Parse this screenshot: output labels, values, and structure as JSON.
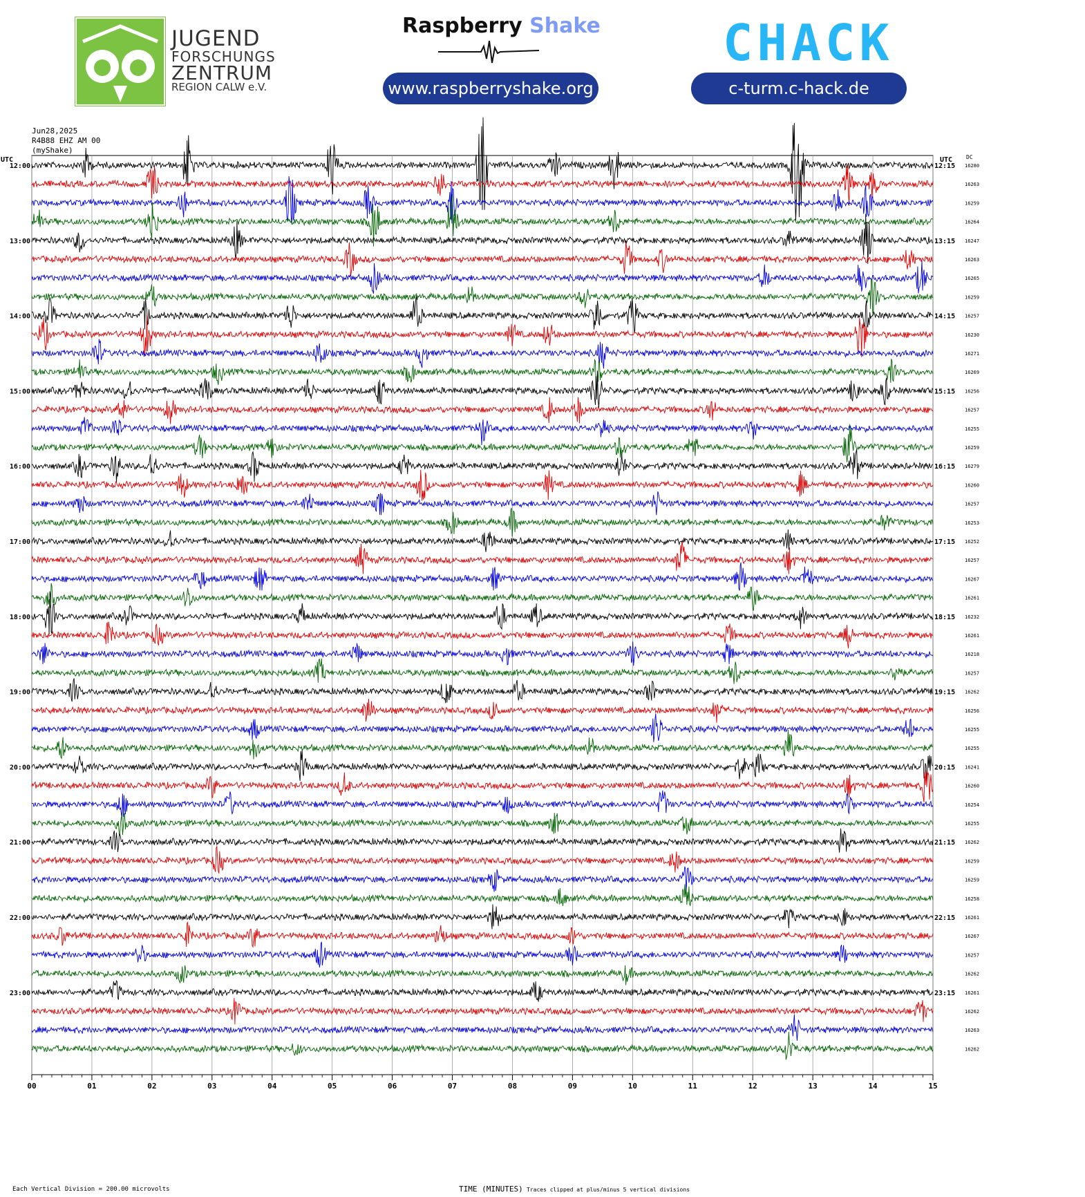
{
  "header": {
    "jfz": {
      "line1": "JUGEND",
      "line2": "FORSCHUNGS",
      "line3": "ZENTRUM",
      "line4": "REGION CALW e.V.",
      "green": "#7cc243"
    },
    "rs": {
      "brand1": "Raspberry",
      "brand2": "Shake",
      "url": "www.raspberryshake.org",
      "accent": "#7f9cf5"
    },
    "chack": {
      "logo": "CHACK",
      "url": "c-turm.c-hack.de",
      "green": "#6fcf3a",
      "cyan": "#29b6f6"
    },
    "pill_color": "#1f3a93"
  },
  "meta": {
    "date": "Jun28,2025",
    "station": "R4B88 EHZ AM 00",
    "source": "(myShake)",
    "utc_left": "UTC",
    "utc_right": "UTC",
    "dc": "DC"
  },
  "footer": {
    "scale_note": "Each Vertical Division =  200.00 microvolts",
    "xlabel": "TIME (MINUTES)",
    "clip_note": "Traces clipped at plus/minus 5 vertical divisions"
  },
  "chart_data": {
    "type": "line",
    "title": "",
    "xlabel": "TIME (MINUTES)",
    "x_ticks": [
      "00",
      "01",
      "02",
      "03",
      "04",
      "05",
      "06",
      "07",
      "08",
      "09",
      "10",
      "11",
      "12",
      "13",
      "14",
      "15"
    ],
    "xlim": [
      0,
      15
    ],
    "colors": [
      "#000000",
      "#e00000",
      "#0000e0",
      "#006400"
    ],
    "left_time_labels": [
      "12:00",
      "13:00",
      "14:00",
      "15:00",
      "16:00",
      "17:00",
      "18:00",
      "19:00",
      "20:00",
      "21:00",
      "22:00",
      "23:00"
    ],
    "right_time_labels": [
      "12:15",
      "13:15",
      "14:15",
      "15:15",
      "16:15",
      "17:15",
      "18:15",
      "19:15",
      "20:15",
      "21:15",
      "22:15",
      "23:15"
    ],
    "dc_values": [
      "16280",
      "16263",
      "16259",
      "16264",
      "16247",
      "16263",
      "16265",
      "16259",
      "16257",
      "16230",
      "16271",
      "16269",
      "16256",
      "16257",
      "16255",
      "16259",
      "16279",
      "16260",
      "16257",
      "16253",
      "16252",
      "16257",
      "16267",
      "16261",
      "16232",
      "16261",
      "16218",
      "16257",
      "16262",
      "16256",
      "16255",
      "16255",
      "16241",
      "16260",
      "16254",
      "16255",
      "16262",
      "16259",
      "16259",
      "16258",
      "16261",
      "16267",
      "16257",
      "16262",
      "16261",
      "16262",
      "16263",
      "16262"
    ],
    "events": [
      [
        [
          0.9,
          0.8
        ],
        [
          2.6,
          1.6
        ],
        [
          5.0,
          1.8
        ],
        [
          7.5,
          3.2
        ],
        [
          8.7,
          0.9
        ],
        [
          9.7,
          1.4
        ],
        [
          12.7,
          3.0
        ],
        [
          12.8,
          2.2
        ]
      ],
      [
        [
          2.0,
          1.2
        ],
        [
          6.8,
          0.8
        ],
        [
          13.6,
          1.2
        ],
        [
          14.0,
          0.7
        ]
      ],
      [
        [
          2.5,
          0.8
        ],
        [
          4.3,
          1.6
        ],
        [
          5.6,
          0.9
        ],
        [
          7.0,
          1.4
        ],
        [
          13.4,
          0.9
        ],
        [
          13.9,
          1.2
        ]
      ],
      [
        [
          0.1,
          0.7
        ],
        [
          2.0,
          1.2
        ],
        [
          5.7,
          1.4
        ],
        [
          7.0,
          1.6
        ],
        [
          9.7,
          0.7
        ]
      ],
      [
        [
          0.8,
          0.6
        ],
        [
          3.4,
          1.0
        ],
        [
          12.6,
          0.5
        ],
        [
          13.9,
          1.6
        ]
      ],
      [
        [
          5.3,
          0.9
        ],
        [
          9.9,
          1.0
        ],
        [
          10.5,
          0.6
        ],
        [
          14.6,
          0.6
        ]
      ],
      [
        [
          5.7,
          0.8
        ],
        [
          12.2,
          0.6
        ],
        [
          13.8,
          1.2
        ],
        [
          14.8,
          1.0
        ]
      ],
      [
        [
          2.0,
          0.6
        ],
        [
          7.3,
          0.6
        ],
        [
          9.2,
          0.6
        ],
        [
          14.0,
          1.0
        ]
      ],
      [
        [
          0.3,
          0.8
        ],
        [
          1.9,
          0.8
        ],
        [
          4.3,
          0.8
        ],
        [
          6.4,
          1.0
        ],
        [
          9.4,
          1.2
        ],
        [
          10.0,
          1.0
        ],
        [
          13.9,
          0.7
        ]
      ],
      [
        [
          0.2,
          0.9
        ],
        [
          1.9,
          1.3
        ],
        [
          8.0,
          0.6
        ],
        [
          8.6,
          0.7
        ],
        [
          13.8,
          1.5
        ]
      ],
      [
        [
          1.1,
          0.8
        ],
        [
          4.8,
          0.8
        ],
        [
          6.5,
          0.7
        ],
        [
          9.5,
          0.8
        ]
      ],
      [
        [
          0.8,
          0.6
        ],
        [
          3.1,
          0.6
        ],
        [
          6.3,
          0.6
        ],
        [
          9.4,
          0.9
        ],
        [
          14.3,
          0.6
        ]
      ],
      [
        [
          0.8,
          0.6
        ],
        [
          1.6,
          0.7
        ],
        [
          2.9,
          0.8
        ],
        [
          4.6,
          0.7
        ],
        [
          5.8,
          0.8
        ],
        [
          9.4,
          1.5
        ],
        [
          13.7,
          0.8
        ],
        [
          14.2,
          0.7
        ]
      ],
      [
        [
          1.5,
          0.6
        ],
        [
          2.3,
          0.7
        ],
        [
          8.6,
          0.7
        ],
        [
          9.1,
          0.7
        ],
        [
          11.3,
          0.6
        ]
      ],
      [
        [
          0.9,
          0.6
        ],
        [
          1.4,
          0.6
        ],
        [
          7.5,
          0.8
        ],
        [
          9.5,
          0.6
        ],
        [
          12.0,
          0.6
        ]
      ],
      [
        [
          2.8,
          0.7
        ],
        [
          4.0,
          0.6
        ],
        [
          9.8,
          0.6
        ],
        [
          11.0,
          0.7
        ],
        [
          13.6,
          1.2
        ]
      ],
      [
        [
          0.8,
          0.6
        ],
        [
          1.4,
          0.8
        ],
        [
          2.0,
          0.8
        ],
        [
          3.7,
          0.8
        ],
        [
          6.2,
          0.6
        ],
        [
          9.8,
          0.7
        ],
        [
          13.7,
          1.0
        ]
      ],
      [
        [
          2.5,
          0.8
        ],
        [
          3.5,
          0.8
        ],
        [
          6.5,
          1.0
        ],
        [
          8.6,
          0.7
        ],
        [
          12.8,
          0.6
        ]
      ],
      [
        [
          0.8,
          0.6
        ],
        [
          4.6,
          0.6
        ],
        [
          5.8,
          0.6
        ],
        [
          10.4,
          0.6
        ]
      ],
      [
        [
          7.0,
          0.7
        ],
        [
          8.0,
          0.7
        ],
        [
          14.2,
          0.5
        ]
      ],
      [
        [
          2.3,
          0.6
        ],
        [
          7.6,
          0.8
        ],
        [
          12.6,
          0.6
        ]
      ],
      [
        [
          5.5,
          0.9
        ],
        [
          10.8,
          1.2
        ],
        [
          12.6,
          0.7
        ]
      ],
      [
        [
          2.8,
          0.6
        ],
        [
          3.8,
          0.8
        ],
        [
          7.7,
          0.6
        ],
        [
          11.8,
          0.8
        ],
        [
          12.9,
          0.8
        ]
      ],
      [
        [
          0.3,
          0.8
        ],
        [
          2.6,
          0.6
        ],
        [
          12.0,
          0.7
        ]
      ],
      [
        [
          0.3,
          1.2
        ],
        [
          1.6,
          0.6
        ],
        [
          4.5,
          0.6
        ],
        [
          7.8,
          0.8
        ],
        [
          8.4,
          0.6
        ],
        [
          12.8,
          0.6
        ]
      ],
      [
        [
          1.3,
          0.8
        ],
        [
          2.1,
          0.6
        ],
        [
          11.6,
          0.6
        ],
        [
          13.6,
          0.6
        ]
      ],
      [
        [
          0.2,
          0.6
        ],
        [
          5.4,
          0.6
        ],
        [
          7.9,
          0.6
        ],
        [
          10.0,
          0.6
        ],
        [
          11.6,
          0.6
        ]
      ],
      [
        [
          4.8,
          0.7
        ],
        [
          11.7,
          0.7
        ],
        [
          14.4,
          0.6
        ]
      ],
      [
        [
          0.7,
          0.6
        ],
        [
          3.0,
          0.6
        ],
        [
          6.9,
          0.8
        ],
        [
          8.1,
          0.6
        ],
        [
          10.3,
          0.6
        ]
      ],
      [
        [
          5.6,
          0.8
        ],
        [
          7.7,
          0.6
        ],
        [
          11.4,
          0.6
        ]
      ],
      [
        [
          3.7,
          0.6
        ],
        [
          10.4,
          1.0
        ],
        [
          14.6,
          0.6
        ]
      ],
      [
        [
          0.5,
          0.6
        ],
        [
          3.7,
          0.6
        ],
        [
          9.3,
          0.6
        ],
        [
          12.6,
          1.0
        ]
      ],
      [
        [
          0.8,
          0.6
        ],
        [
          4.5,
          0.8
        ],
        [
          11.8,
          0.6
        ],
        [
          12.1,
          0.7
        ],
        [
          14.9,
          1.0
        ]
      ],
      [
        [
          3.0,
          0.6
        ],
        [
          5.2,
          0.7
        ],
        [
          13.6,
          0.6
        ],
        [
          14.9,
          1.2
        ]
      ],
      [
        [
          1.5,
          0.7
        ],
        [
          3.3,
          0.6
        ],
        [
          7.9,
          0.5
        ],
        [
          10.5,
          0.8
        ],
        [
          13.6,
          0.6
        ]
      ],
      [
        [
          1.5,
          0.8
        ],
        [
          8.7,
          0.6
        ],
        [
          10.9,
          0.5
        ]
      ],
      [
        [
          1.4,
          0.6
        ],
        [
          13.5,
          0.8
        ]
      ],
      [
        [
          3.1,
          0.8
        ],
        [
          10.7,
          0.6
        ]
      ],
      [
        [
          7.7,
          0.6
        ],
        [
          10.9,
          0.8
        ]
      ],
      [
        [
          8.8,
          0.5
        ],
        [
          10.9,
          0.8
        ]
      ],
      [
        [
          7.7,
          0.8
        ],
        [
          12.6,
          0.5
        ],
        [
          13.5,
          0.5
        ]
      ],
      [
        [
          0.5,
          0.5
        ],
        [
          2.6,
          0.6
        ],
        [
          3.7,
          0.6
        ],
        [
          6.8,
          0.6
        ],
        [
          9.0,
          0.5
        ]
      ],
      [
        [
          1.8,
          0.6
        ],
        [
          4.8,
          0.7
        ],
        [
          9.0,
          0.5
        ],
        [
          13.5,
          0.5
        ]
      ],
      [
        [
          2.5,
          0.5
        ],
        [
          9.9,
          0.5
        ]
      ],
      [
        [
          1.4,
          0.6
        ],
        [
          8.4,
          0.6
        ]
      ],
      [
        [
          3.4,
          0.8
        ],
        [
          14.8,
          0.7
        ]
      ],
      [
        [
          12.7,
          0.8
        ]
      ],
      [
        [
          12.6,
          0.9
        ],
        [
          4.4,
          0.3
        ]
      ]
    ]
  }
}
